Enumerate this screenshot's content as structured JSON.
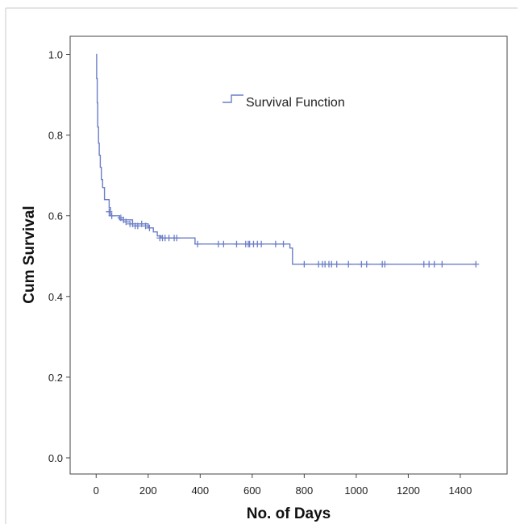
{
  "chart_data": {
    "type": "line",
    "title": "",
    "xlabel": "No. of Days",
    "ylabel": "Cum Survival",
    "xlim": [
      -100,
      1580
    ],
    "ylim": [
      -0.04,
      1.045
    ],
    "xticks": [
      0,
      200,
      400,
      600,
      800,
      1000,
      1200,
      1400
    ],
    "yticks": [
      0.0,
      0.2,
      0.4,
      0.6,
      0.8,
      1.0
    ],
    "xtick_labels": [
      "0",
      "200",
      "400",
      "600",
      "800",
      "1000",
      "1200",
      "1400"
    ],
    "ytick_labels": [
      "0.0",
      "0.2",
      "0.4",
      "0.6",
      "0.8",
      "1.0"
    ],
    "grid": false,
    "legend_position": "top-center",
    "series": [
      {
        "name": "Survival Function",
        "color": "#6b7ec8",
        "step_points": [
          [
            0,
            1.0
          ],
          [
            2,
            0.94
          ],
          [
            4,
            0.88
          ],
          [
            6,
            0.82
          ],
          [
            9,
            0.78
          ],
          [
            12,
            0.75
          ],
          [
            16,
            0.72
          ],
          [
            20,
            0.69
          ],
          [
            25,
            0.67
          ],
          [
            32,
            0.64
          ],
          [
            50,
            0.62
          ],
          [
            55,
            0.6
          ],
          [
            90,
            0.59
          ],
          [
            140,
            0.58
          ],
          [
            200,
            0.57
          ],
          [
            220,
            0.56
          ],
          [
            235,
            0.55
          ],
          [
            250,
            0.545
          ],
          [
            380,
            0.53
          ],
          [
            745,
            0.52
          ],
          [
            755,
            0.48
          ],
          [
            1460,
            0.48
          ]
        ],
        "censored": [
          [
            50,
            0.61
          ],
          [
            60,
            0.6
          ],
          [
            95,
            0.595
          ],
          [
            105,
            0.59
          ],
          [
            115,
            0.585
          ],
          [
            130,
            0.58
          ],
          [
            140,
            0.58
          ],
          [
            150,
            0.575
          ],
          [
            160,
            0.575
          ],
          [
            175,
            0.58
          ],
          [
            190,
            0.575
          ],
          [
            205,
            0.57
          ],
          [
            245,
            0.545
          ],
          [
            255,
            0.545
          ],
          [
            265,
            0.545
          ],
          [
            280,
            0.545
          ],
          [
            300,
            0.545
          ],
          [
            310,
            0.545
          ],
          [
            390,
            0.53
          ],
          [
            470,
            0.53
          ],
          [
            490,
            0.53
          ],
          [
            540,
            0.53
          ],
          [
            575,
            0.53
          ],
          [
            585,
            0.53
          ],
          [
            590,
            0.53
          ],
          [
            605,
            0.53
          ],
          [
            620,
            0.53
          ],
          [
            635,
            0.53
          ],
          [
            690,
            0.53
          ],
          [
            720,
            0.53
          ],
          [
            800,
            0.48
          ],
          [
            855,
            0.48
          ],
          [
            870,
            0.48
          ],
          [
            880,
            0.48
          ],
          [
            895,
            0.48
          ],
          [
            905,
            0.48
          ],
          [
            925,
            0.48
          ],
          [
            970,
            0.48
          ],
          [
            1020,
            0.48
          ],
          [
            1040,
            0.48
          ],
          [
            1100,
            0.48
          ],
          [
            1110,
            0.48
          ],
          [
            1260,
            0.48
          ],
          [
            1280,
            0.48
          ],
          [
            1300,
            0.48
          ],
          [
            1330,
            0.48
          ],
          [
            1460,
            0.48
          ]
        ]
      }
    ]
  }
}
